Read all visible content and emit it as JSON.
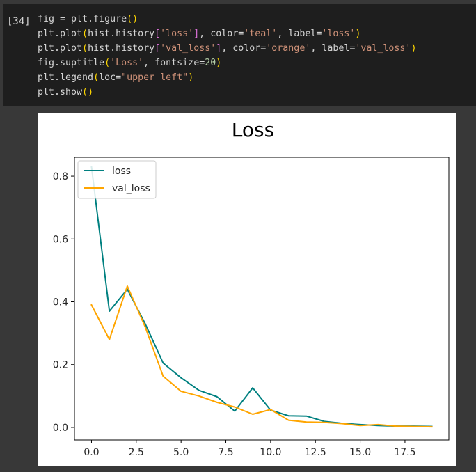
{
  "cell": {
    "prompt": "[34]",
    "code_lines": [
      "fig = plt.figure()",
      "plt.plot(hist.history['loss'], color='teal', label='loss')",
      "plt.plot(hist.history['val_loss'], color='orange', label='val_loss')",
      "fig.suptitle('Loss', fontsize=20)",
      "plt.legend(loc=\"upper left\")",
      "plt.show()"
    ]
  },
  "chart_data": {
    "type": "line",
    "title": "Loss",
    "xlabel": "",
    "ylabel": "",
    "xlim": [
      -0.95,
      19.95
    ],
    "ylim": [
      -0.04,
      0.86
    ],
    "xticks": [
      0.0,
      2.5,
      5.0,
      7.5,
      10.0,
      12.5,
      15.0,
      17.5
    ],
    "xtick_labels": [
      "0.0",
      "2.5",
      "5.0",
      "7.5",
      "10.0",
      "12.5",
      "15.0",
      "17.5"
    ],
    "yticks": [
      0.0,
      0.2,
      0.4,
      0.6,
      0.8
    ],
    "ytick_labels": [
      "0.0",
      "0.2",
      "0.4",
      "0.6",
      "0.8"
    ],
    "grid": false,
    "legend_position": "upper left",
    "x": [
      0,
      1,
      2,
      3,
      4,
      5,
      6,
      7,
      8,
      9,
      10,
      11,
      12,
      13,
      14,
      15,
      16,
      17,
      18,
      19
    ],
    "series": [
      {
        "name": "loss",
        "color": "#008080",
        "values": [
          0.83,
          0.37,
          0.44,
          0.33,
          0.205,
          0.158,
          0.118,
          0.098,
          0.052,
          0.126,
          0.055,
          0.037,
          0.036,
          0.019,
          0.013,
          0.009,
          0.006,
          0.004,
          0.004,
          0.003
        ]
      },
      {
        "name": "val_loss",
        "color": "#ffa500",
        "values": [
          0.39,
          0.28,
          0.45,
          0.32,
          0.163,
          0.115,
          0.1,
          0.08,
          0.065,
          0.042,
          0.057,
          0.023,
          0.017,
          0.016,
          0.012,
          0.006,
          0.009,
          0.004,
          0.003,
          0.002
        ]
      }
    ]
  }
}
